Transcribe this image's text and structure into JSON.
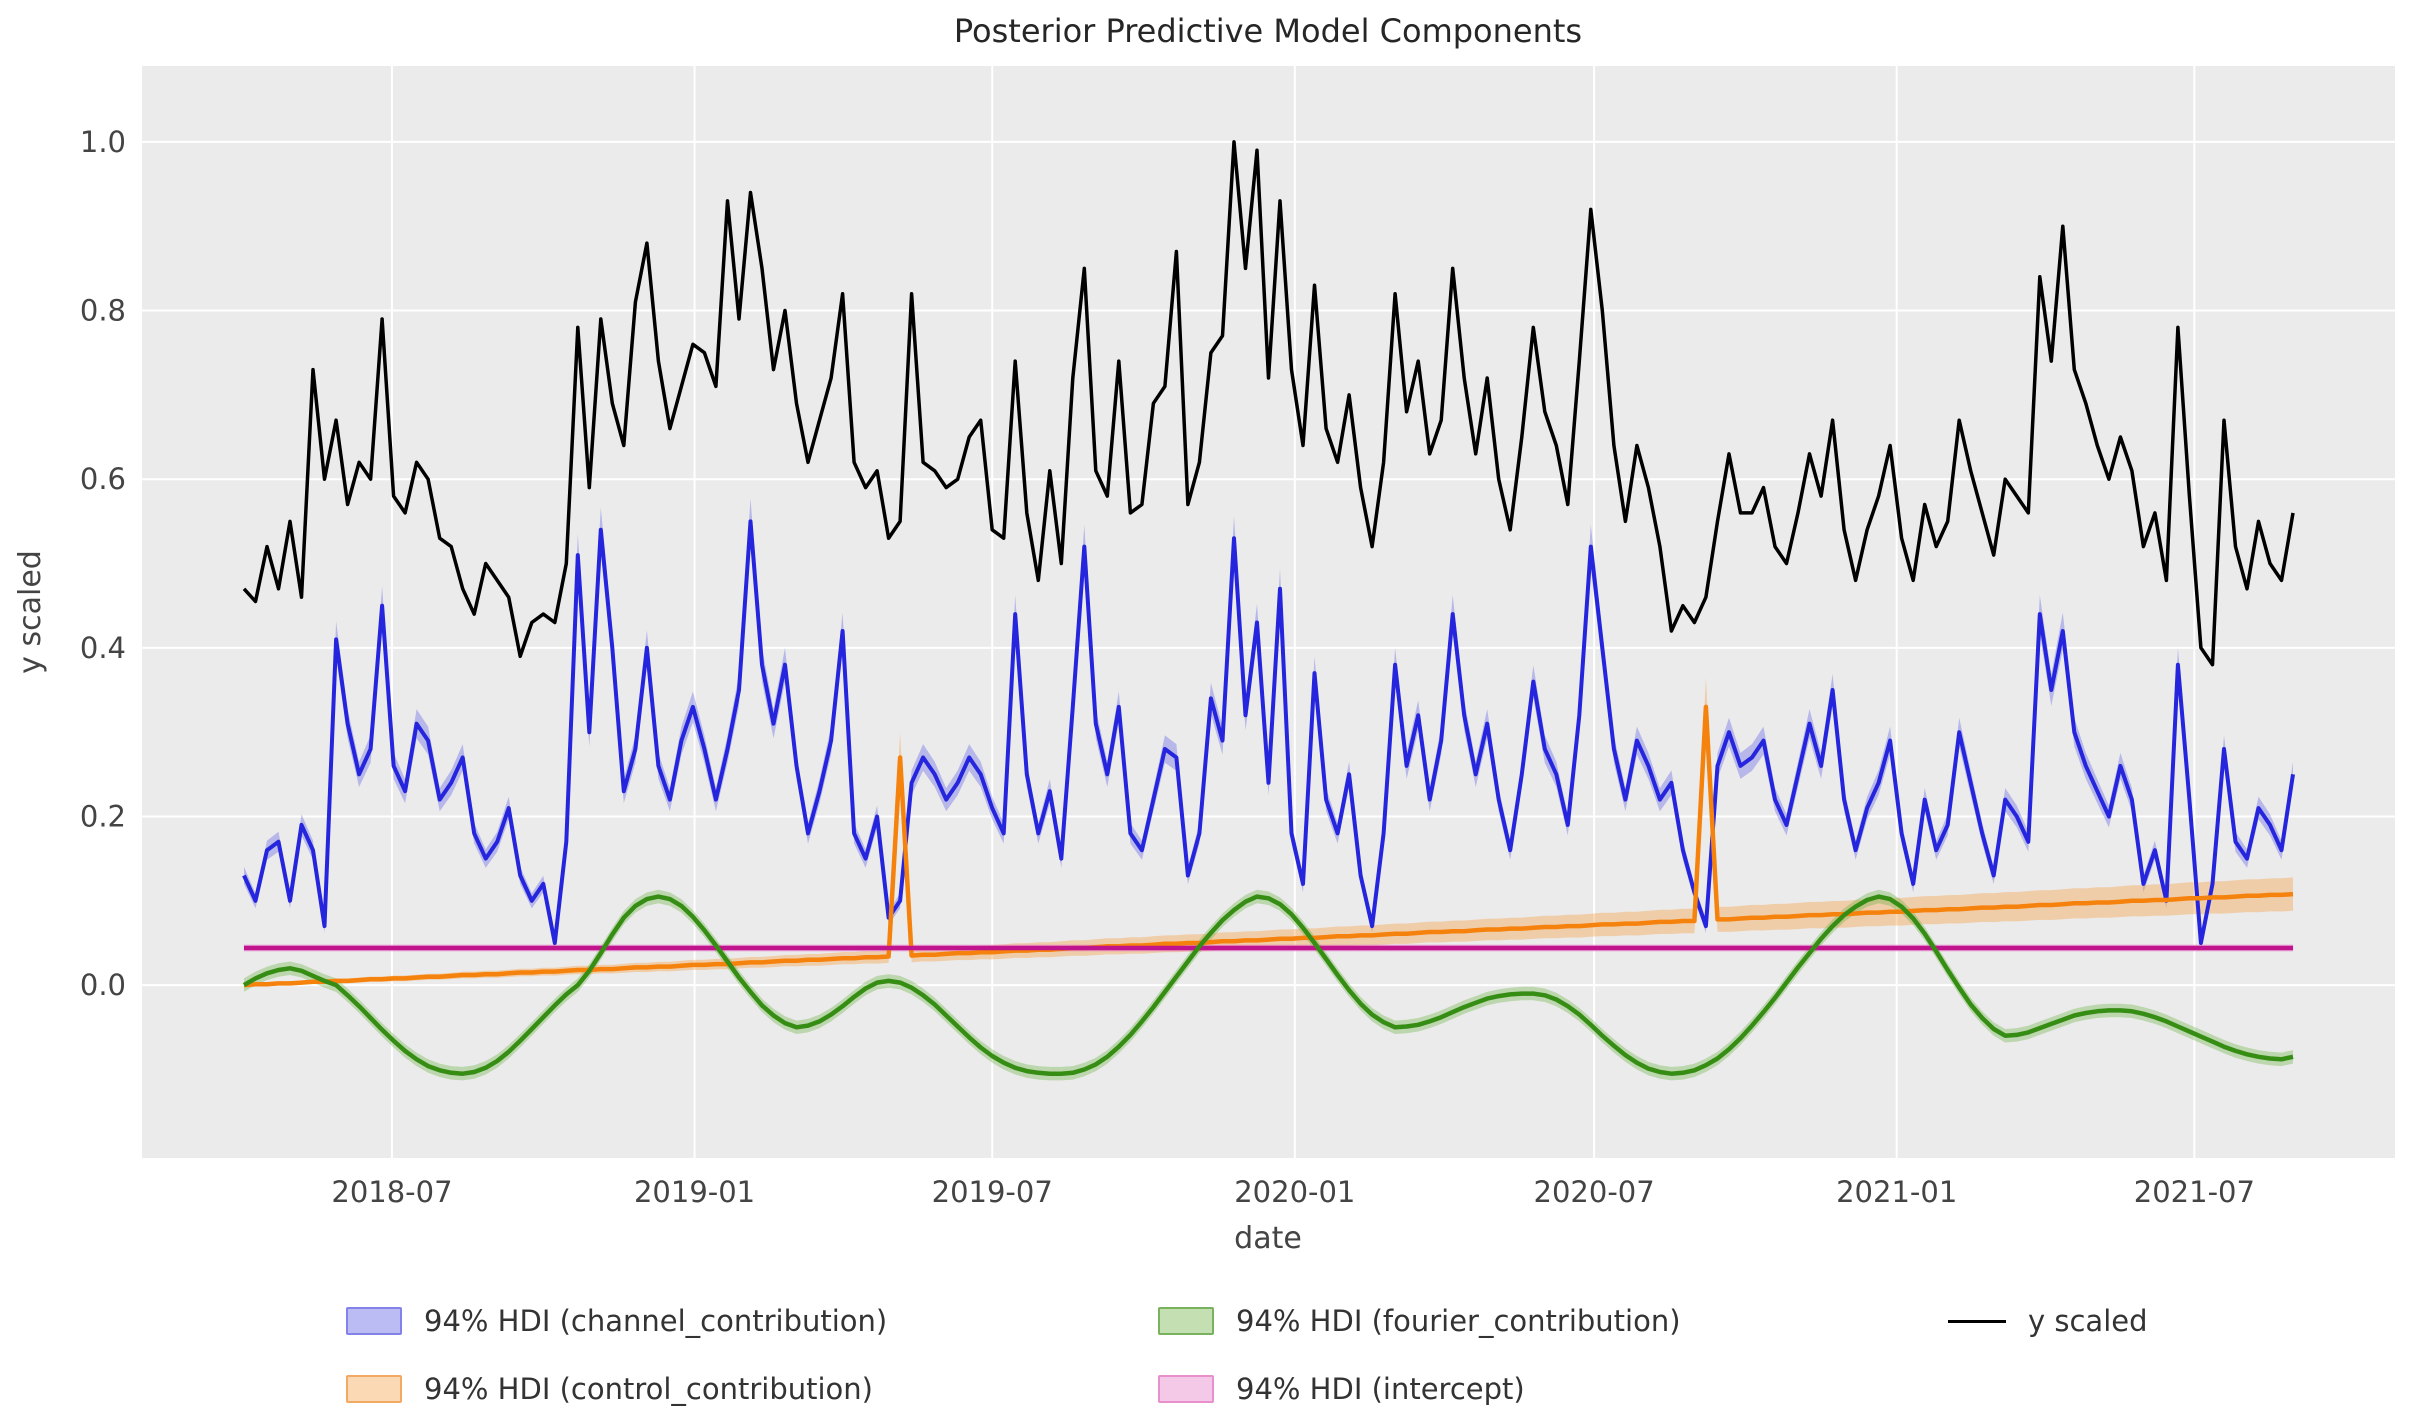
{
  "title": "Posterior Predictive Model Components",
  "axes": {
    "xlabel": "date",
    "ylabel": "y scaled",
    "x_tick_labels": [
      "2018-07",
      "2019-01",
      "2019-07",
      "2020-01",
      "2020-07",
      "2021-01",
      "2021-07"
    ],
    "x_tick_days": [
      90,
      274,
      455,
      639,
      821,
      1005,
      1186
    ],
    "y_tick_labels": [
      "0.0",
      "0.2",
      "0.4",
      "0.6",
      "0.8",
      "1.0"
    ],
    "y_tick_values": [
      0.0,
      0.2,
      0.4,
      0.6,
      0.8,
      1.0
    ]
  },
  "colors": {
    "figure_bg": "#ffffff",
    "plot_bg": "#ebebeb",
    "grid": "#ffffff",
    "tick_label": "#444444",
    "title": "#262626",
    "y_scaled_line": "#000000",
    "channel_line": "#2525dd",
    "channel_band": "rgba(80,80,230,0.33)",
    "control_line": "#f5820d",
    "control_band": "rgba(248,160,70,0.40)",
    "fourier_line": "#368d14",
    "fourier_band": "rgba(100,175,60,0.35)",
    "intercept_line": "#c0148e",
    "intercept_band": "rgba(235,120,200,0.55)"
  },
  "legend": {
    "items": [
      {
        "label": "94% HDI (channel_contribution)",
        "type": "patch",
        "fill": "#bcbcf4",
        "edge": "#8282e9"
      },
      {
        "label": "94% HDI (control_contribution)",
        "type": "patch",
        "fill": "#fbd9b4",
        "edge": "#f4a963"
      },
      {
        "label": "94% HDI (fourier_contribution)",
        "type": "patch",
        "fill": "#c4dfb2",
        "edge": "#79b25e"
      },
      {
        "label": "94% HDI (intercept)",
        "type": "patch",
        "fill": "#f4c9e7",
        "edge": "#e98fcb"
      },
      {
        "label": "y scaled",
        "type": "line",
        "edge": "#000000"
      }
    ]
  },
  "chart_data": {
    "type": "line",
    "title": "Posterior Predictive Model Components",
    "xlabel": "date",
    "ylabel": "y scaled",
    "x_start_date": "2018-04-02",
    "x_step_days": 7,
    "n_points": 179,
    "xlim_days": [
      -62,
      1308
    ],
    "ylim": [
      -0.205,
      1.09
    ],
    "grid": true,
    "legend_position": "bottom",
    "intercept": {
      "value": 0.044,
      "hdi_half_width": 0.004
    },
    "band_rules": {
      "channel": {
        "base": 0.005,
        "proportional": 0.04
      },
      "control": {
        "base": 0.002,
        "per_week": 0.0001,
        "spike_half_widths": {
          "57": 0.03,
          "127": 0.035
        }
      },
      "fourier": {
        "constant": 0.008
      }
    },
    "series": [
      {
        "name": "y scaled",
        "values": [
          0.47,
          0.455,
          0.52,
          0.47,
          0.55,
          0.46,
          0.73,
          0.6,
          0.67,
          0.57,
          0.62,
          0.6,
          0.79,
          0.58,
          0.56,
          0.62,
          0.6,
          0.53,
          0.52,
          0.47,
          0.44,
          0.5,
          0.48,
          0.46,
          0.39,
          0.43,
          0.44,
          0.43,
          0.5,
          0.78,
          0.59,
          0.79,
          0.69,
          0.64,
          0.81,
          0.88,
          0.74,
          0.66,
          0.71,
          0.76,
          0.75,
          0.71,
          0.93,
          0.79,
          0.94,
          0.85,
          0.73,
          0.8,
          0.69,
          0.62,
          0.67,
          0.72,
          0.82,
          0.62,
          0.59,
          0.61,
          0.53,
          0.55,
          0.82,
          0.62,
          0.61,
          0.59,
          0.6,
          0.65,
          0.67,
          0.54,
          0.53,
          0.74,
          0.56,
          0.48,
          0.61,
          0.5,
          0.72,
          0.85,
          0.61,
          0.58,
          0.74,
          0.56,
          0.57,
          0.69,
          0.71,
          0.87,
          0.57,
          0.62,
          0.75,
          0.77,
          1.0,
          0.85,
          0.99,
          0.72,
          0.93,
          0.73,
          0.64,
          0.83,
          0.66,
          0.62,
          0.7,
          0.59,
          0.52,
          0.62,
          0.82,
          0.68,
          0.74,
          0.63,
          0.67,
          0.85,
          0.72,
          0.63,
          0.72,
          0.6,
          0.54,
          0.65,
          0.78,
          0.68,
          0.64,
          0.57,
          0.74,
          0.92,
          0.8,
          0.64,
          0.55,
          0.64,
          0.59,
          0.52,
          0.42,
          0.45,
          0.43,
          0.46,
          0.55,
          0.63,
          0.56,
          0.56,
          0.59,
          0.52,
          0.5,
          0.56,
          0.63,
          0.58,
          0.67,
          0.54,
          0.48,
          0.54,
          0.58,
          0.64,
          0.53,
          0.48,
          0.57,
          0.52,
          0.55,
          0.67,
          0.61,
          0.56,
          0.51,
          0.6,
          0.58,
          0.56,
          0.84,
          0.74,
          0.9,
          0.73,
          0.69,
          0.64,
          0.6,
          0.65,
          0.61,
          0.52,
          0.56,
          0.48,
          0.78,
          0.58,
          0.4,
          0.38,
          0.67,
          0.52,
          0.47,
          0.55,
          0.5,
          0.48,
          0.56
        ]
      },
      {
        "name": "channel_contribution",
        "values": [
          0.13,
          0.1,
          0.16,
          0.17,
          0.1,
          0.19,
          0.16,
          0.07,
          0.41,
          0.31,
          0.25,
          0.28,
          0.45,
          0.26,
          0.23,
          0.31,
          0.29,
          0.22,
          0.24,
          0.27,
          0.18,
          0.15,
          0.17,
          0.21,
          0.13,
          0.1,
          0.12,
          0.05,
          0.17,
          0.51,
          0.3,
          0.54,
          0.4,
          0.23,
          0.28,
          0.4,
          0.26,
          0.22,
          0.29,
          0.33,
          0.28,
          0.22,
          0.28,
          0.35,
          0.55,
          0.38,
          0.31,
          0.38,
          0.26,
          0.18,
          0.23,
          0.29,
          0.42,
          0.18,
          0.15,
          0.2,
          0.08,
          0.1,
          0.24,
          0.27,
          0.25,
          0.22,
          0.24,
          0.27,
          0.25,
          0.21,
          0.18,
          0.44,
          0.25,
          0.18,
          0.23,
          0.15,
          0.33,
          0.52,
          0.31,
          0.25,
          0.33,
          0.18,
          0.16,
          0.22,
          0.28,
          0.27,
          0.13,
          0.18,
          0.34,
          0.29,
          0.53,
          0.32,
          0.43,
          0.24,
          0.47,
          0.18,
          0.12,
          0.37,
          0.22,
          0.18,
          0.25,
          0.13,
          0.07,
          0.18,
          0.38,
          0.26,
          0.32,
          0.22,
          0.29,
          0.44,
          0.32,
          0.25,
          0.31,
          0.22,
          0.16,
          0.25,
          0.36,
          0.28,
          0.25,
          0.19,
          0.32,
          0.52,
          0.4,
          0.28,
          0.22,
          0.29,
          0.26,
          0.22,
          0.24,
          0.16,
          0.11,
          0.07,
          0.26,
          0.3,
          0.26,
          0.27,
          0.29,
          0.22,
          0.19,
          0.25,
          0.31,
          0.26,
          0.35,
          0.22,
          0.16,
          0.21,
          0.24,
          0.29,
          0.18,
          0.12,
          0.22,
          0.16,
          0.19,
          0.3,
          0.24,
          0.18,
          0.13,
          0.22,
          0.2,
          0.17,
          0.44,
          0.35,
          0.42,
          0.3,
          0.26,
          0.23,
          0.2,
          0.26,
          0.22,
          0.12,
          0.16,
          0.1,
          0.38,
          0.22,
          0.05,
          0.12,
          0.28,
          0.17,
          0.15,
          0.21,
          0.19,
          0.16,
          0.25
        ]
      },
      {
        "name": "control_contribution",
        "values": [
          0.0,
          0.001,
          0.001,
          0.002,
          0.002,
          0.003,
          0.004,
          0.004,
          0.005,
          0.005,
          0.006,
          0.007,
          0.007,
          0.008,
          0.008,
          0.009,
          0.01,
          0.01,
          0.011,
          0.012,
          0.012,
          0.013,
          0.013,
          0.014,
          0.015,
          0.015,
          0.016,
          0.016,
          0.017,
          0.018,
          0.018,
          0.019,
          0.019,
          0.02,
          0.021,
          0.021,
          0.022,
          0.022,
          0.023,
          0.024,
          0.024,
          0.025,
          0.025,
          0.026,
          0.027,
          0.027,
          0.028,
          0.029,
          0.029,
          0.03,
          0.03,
          0.031,
          0.032,
          0.032,
          0.033,
          0.033,
          0.034,
          0.27,
          0.035,
          0.036,
          0.036,
          0.037,
          0.038,
          0.038,
          0.039,
          0.039,
          0.04,
          0.041,
          0.041,
          0.042,
          0.042,
          0.043,
          0.044,
          0.044,
          0.045,
          0.046,
          0.046,
          0.047,
          0.047,
          0.048,
          0.049,
          0.049,
          0.05,
          0.05,
          0.051,
          0.052,
          0.052,
          0.053,
          0.053,
          0.054,
          0.055,
          0.055,
          0.056,
          0.056,
          0.057,
          0.058,
          0.058,
          0.059,
          0.059,
          0.06,
          0.061,
          0.061,
          0.062,
          0.063,
          0.063,
          0.064,
          0.064,
          0.065,
          0.066,
          0.066,
          0.067,
          0.067,
          0.068,
          0.069,
          0.069,
          0.07,
          0.07,
          0.071,
          0.072,
          0.072,
          0.073,
          0.073,
          0.074,
          0.075,
          0.075,
          0.076,
          0.076,
          0.33,
          0.078,
          0.078,
          0.079,
          0.08,
          0.08,
          0.081,
          0.081,
          0.082,
          0.083,
          0.083,
          0.084,
          0.084,
          0.085,
          0.086,
          0.086,
          0.087,
          0.087,
          0.088,
          0.089,
          0.089,
          0.09,
          0.09,
          0.091,
          0.092,
          0.092,
          0.093,
          0.093,
          0.094,
          0.095,
          0.095,
          0.096,
          0.097,
          0.097,
          0.098,
          0.098,
          0.099,
          0.1,
          0.1,
          0.101,
          0.101,
          0.102,
          0.103,
          0.103,
          0.104,
          0.104,
          0.105,
          0.106,
          0.106,
          0.107,
          0.107,
          0.108
        ]
      },
      {
        "name": "fourier_contribution",
        "values": [
          0.0,
          0.008,
          0.014,
          0.018,
          0.02,
          0.017,
          0.011,
          0.005,
          0.0,
          -0.012,
          -0.025,
          -0.039,
          -0.053,
          -0.066,
          -0.078,
          -0.088,
          -0.096,
          -0.101,
          -0.104,
          -0.105,
          -0.103,
          -0.098,
          -0.09,
          -0.079,
          -0.066,
          -0.052,
          -0.038,
          -0.024,
          -0.011,
          0.0,
          0.017,
          0.038,
          0.06,
          0.08,
          0.094,
          0.102,
          0.105,
          0.102,
          0.094,
          0.081,
          0.065,
          0.047,
          0.028,
          0.009,
          -0.008,
          -0.024,
          -0.036,
          -0.045,
          -0.05,
          -0.048,
          -0.043,
          -0.035,
          -0.025,
          -0.014,
          -0.004,
          0.003,
          0.005,
          0.003,
          -0.003,
          -0.012,
          -0.023,
          -0.036,
          -0.049,
          -0.062,
          -0.074,
          -0.084,
          -0.092,
          -0.098,
          -0.102,
          -0.104,
          -0.105,
          -0.105,
          -0.104,
          -0.1,
          -0.094,
          -0.085,
          -0.073,
          -0.059,
          -0.043,
          -0.026,
          -0.008,
          0.01,
          0.028,
          0.046,
          0.062,
          0.077,
          0.089,
          0.099,
          0.105,
          0.103,
          0.096,
          0.084,
          0.068,
          0.05,
          0.031,
          0.012,
          -0.006,
          -0.022,
          -0.035,
          -0.044,
          -0.05,
          -0.049,
          -0.047,
          -0.043,
          -0.038,
          -0.032,
          -0.026,
          -0.021,
          -0.016,
          -0.013,
          -0.011,
          -0.01,
          -0.01,
          -0.012,
          -0.017,
          -0.025,
          -0.035,
          -0.047,
          -0.06,
          -0.072,
          -0.083,
          -0.092,
          -0.099,
          -0.103,
          -0.105,
          -0.104,
          -0.101,
          -0.095,
          -0.087,
          -0.076,
          -0.063,
          -0.048,
          -0.032,
          -0.015,
          0.003,
          0.021,
          0.038,
          0.055,
          0.07,
          0.083,
          0.093,
          0.101,
          0.105,
          0.102,
          0.093,
          0.079,
          0.061,
          0.04,
          0.018,
          -0.003,
          -0.023,
          -0.039,
          -0.052,
          -0.06,
          -0.059,
          -0.056,
          -0.051,
          -0.046,
          -0.041,
          -0.036,
          -0.033,
          -0.031,
          -0.03,
          -0.03,
          -0.031,
          -0.034,
          -0.038,
          -0.043,
          -0.049,
          -0.055,
          -0.061,
          -0.067,
          -0.073,
          -0.078,
          -0.082,
          -0.085,
          -0.087,
          -0.088,
          -0.085
        ]
      }
    ]
  }
}
